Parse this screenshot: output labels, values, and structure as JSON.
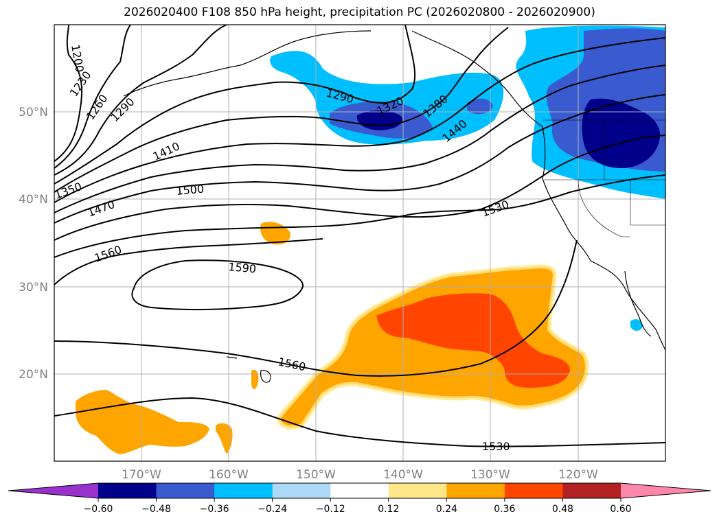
{
  "title": "2026020400 F108 850 hPa height, precipitation PC (2026020800 - 2026020900)",
  "longitude_labels": [
    "170°W",
    "160°W",
    "150°W",
    "140°W",
    "130°W",
    "120°W"
  ],
  "latitude_labels": [
    "50°N",
    "40°N",
    "30°N",
    "20°N"
  ],
  "contour_labels": [
    "1200",
    "1230",
    "1260",
    "1290",
    "1290",
    "1320",
    "1380",
    "1440",
    "1410",
    "1350",
    "1470",
    "1500",
    "1530",
    "1560",
    "1590",
    "1560",
    "1530"
  ],
  "colorbar": {
    "ticks": [
      "−0.60",
      "−0.48",
      "−0.36",
      "−0.24",
      "−0.12",
      "0.12",
      "0.24",
      "0.36",
      "0.48",
      "0.60"
    ],
    "colors": [
      "#9932cc",
      "#00008b",
      "#3a5bd0",
      "#00bfff",
      "#add8f7",
      "#ffffff",
      "#ffe88a",
      "#ffa500",
      "#ff4500",
      "#b22222",
      "#ff88aa"
    ]
  }
}
